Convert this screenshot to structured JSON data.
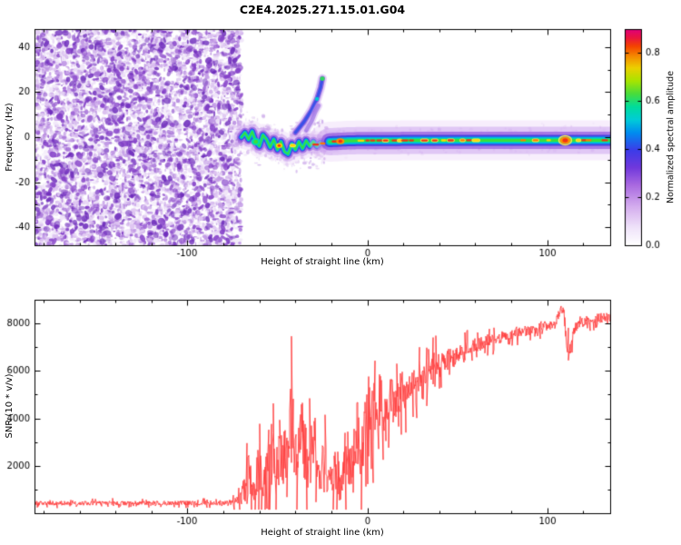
{
  "title": "C2E4.2025.271.15.01.G04",
  "chart_data": [
    {
      "type": "heatmap",
      "title": "C2E4.2025.271.15.01.G04",
      "xlabel": "Height of straight line (km)",
      "ylabel": "Frequency (Hz)",
      "x_range": [
        -185,
        135
      ],
      "y_range": [
        -48,
        48
      ],
      "x_ticks": [
        -100,
        0,
        100
      ],
      "x_minor_step": 20,
      "y_ticks": [
        -40,
        -20,
        0,
        20,
        40
      ],
      "y_minor_step": 10,
      "colorbar": {
        "label": "Normalized spectral amplitude",
        "ticks": [
          0.0,
          0.2,
          0.4,
          0.6,
          0.8
        ],
        "value_range": [
          0,
          0.9
        ],
        "stops": [
          {
            "p": 0.0,
            "c": "#ffffff"
          },
          {
            "p": 0.08,
            "c": "#f0e4fa"
          },
          {
            "p": 0.18,
            "c": "#d4acee"
          },
          {
            "p": 0.28,
            "c": "#a868e0"
          },
          {
            "p": 0.36,
            "c": "#7038dc"
          },
          {
            "p": 0.44,
            "c": "#3c3ce8"
          },
          {
            "p": 0.52,
            "c": "#008cf0"
          },
          {
            "p": 0.58,
            "c": "#00ccd8"
          },
          {
            "p": 0.64,
            "c": "#00dc9c"
          },
          {
            "p": 0.7,
            "c": "#48dc3c"
          },
          {
            "p": 0.76,
            "c": "#a8e400"
          },
          {
            "p": 0.82,
            "c": "#ecd000"
          },
          {
            "p": 0.87,
            "c": "#f49000"
          },
          {
            "p": 0.92,
            "c": "#f44400"
          },
          {
            "p": 0.96,
            "c": "#ea1440"
          },
          {
            "p": 1.0,
            "c": "#e0007c"
          }
        ]
      },
      "noise_region": {
        "x_min": -185,
        "x_max": -70,
        "description": "dense incoherent purple speckle noise filling full frequency range"
      },
      "signal_trace": {
        "description": "narrow wavy spectral line from -70 to -20 km, then flat horizontal band near 0 Hz out to 135 km with green core and red/orange center dashes",
        "points": [
          [
            -70,
            0
          ],
          [
            -68,
            2
          ],
          [
            -66,
            -1
          ],
          [
            -64,
            2.5
          ],
          [
            -62,
            -2
          ],
          [
            -60,
            -4
          ],
          [
            -58,
            1
          ],
          [
            -56,
            -1
          ],
          [
            -54,
            -4.5
          ],
          [
            -52,
            -1
          ],
          [
            -50,
            -5.5
          ],
          [
            -48,
            -2
          ],
          [
            -46,
            -6.5
          ],
          [
            -44,
            -7.5
          ],
          [
            -42,
            -3
          ],
          [
            -40,
            -5.5
          ],
          [
            -38,
            -2
          ],
          [
            -36,
            -5
          ],
          [
            -34,
            -1.5
          ],
          [
            -32,
            -4
          ],
          [
            -30,
            -2
          ],
          [
            -28,
            -4
          ],
          [
            -26,
            -2.5
          ],
          [
            -24,
            -3
          ],
          [
            -22,
            -2
          ],
          [
            -20,
            -2
          ],
          [
            -10,
            -1.6
          ],
          [
            0,
            -1.5
          ],
          [
            50,
            -1.4
          ],
          [
            100,
            -1.4
          ],
          [
            135,
            -1.4
          ]
        ],
        "halfwidth_hz": {
          "wavy": 2.5,
          "flat": 5
        },
        "hotspots_km": [
          -62,
          -49,
          -15,
          110
        ]
      },
      "streaks": [
        {
          "points": [
            [
              -40,
              2
            ],
            [
              -35,
              7
            ],
            [
              -31,
              12
            ],
            [
              -28,
              17
            ],
            [
              -26,
              22
            ],
            [
              -25,
              26
            ]
          ],
          "intensity": "medium"
        },
        {
          "points": [
            [
              -34,
              3
            ],
            [
              -31,
              7
            ],
            [
              -29,
              11
            ],
            [
              -27,
              14
            ]
          ],
          "intensity": "faint"
        }
      ]
    },
    {
      "type": "line",
      "xlabel": "Height of straight line (km)",
      "ylabel": "SNR (10 * v/v)",
      "x_range": [
        -185,
        135
      ],
      "y_range": [
        0,
        9000
      ],
      "x_ticks": [
        -100,
        0,
        100
      ],
      "x_minor_step": 20,
      "y_ticks": [
        2000,
        4000,
        6000,
        8000
      ],
      "y_minor_step": 1000,
      "series": [
        {
          "name": "SNR",
          "color": "#ff3b3b",
          "anchors_x_mean_spread": [
            [
              -185,
              420,
              140
            ],
            [
              -150,
              425,
              140
            ],
            [
              -120,
              430,
              140
            ],
            [
              -95,
              430,
              150
            ],
            [
              -78,
              440,
              160
            ],
            [
              -72,
              500,
              260
            ],
            [
              -69,
              900,
              800
            ],
            [
              -66,
              1600,
              1400
            ],
            [
              -63,
              900,
              800
            ],
            [
              -60,
              2400,
              2100
            ],
            [
              -57,
              1200,
              1000
            ],
            [
              -54,
              2900,
              2500
            ],
            [
              -51,
              1400,
              1200
            ],
            [
              -48,
              3100,
              2700
            ],
            [
              -45,
              2400,
              2100
            ],
            [
              -42,
              3900,
              2900
            ],
            [
              -39,
              2100,
              1800
            ],
            [
              -36,
              3400,
              2600
            ],
            [
              -33,
              1900,
              1600
            ],
            [
              -30,
              2700,
              2300
            ],
            [
              -27,
              1500,
              1300
            ],
            [
              -24,
              2200,
              1800
            ],
            [
              -21,
              1100,
              900
            ],
            [
              -18,
              1700,
              1400
            ],
            [
              -15,
              900,
              700
            ],
            [
              -12,
              2600,
              2100
            ],
            [
              -9,
              1700,
              1400
            ],
            [
              -6,
              3600,
              2600
            ],
            [
              -3,
              2700,
              2100
            ],
            [
              0,
              4400,
              2300
            ],
            [
              3,
              4000,
              2100
            ],
            [
              6,
              4800,
              1900
            ],
            [
              9,
              4300,
              1900
            ],
            [
              12,
              5000,
              1700
            ],
            [
              15,
              4700,
              1600
            ],
            [
              18,
              5200,
              1400
            ],
            [
              21,
              5000,
              1300
            ],
            [
              25,
              5400,
              1150
            ],
            [
              30,
              5700,
              1050
            ],
            [
              35,
              6000,
              950
            ],
            [
              40,
              6250,
              850
            ],
            [
              45,
              6450,
              750
            ],
            [
              50,
              6650,
              650
            ],
            [
              55,
              6850,
              580
            ],
            [
              60,
              7050,
              520
            ],
            [
              65,
              7200,
              470
            ],
            [
              70,
              7320,
              430
            ],
            [
              75,
              7420,
              400
            ],
            [
              80,
              7520,
              380
            ],
            [
              85,
              7620,
              360
            ],
            [
              90,
              7720,
              350
            ],
            [
              95,
              7820,
              340
            ],
            [
              100,
              7900,
              340
            ],
            [
              104,
              8000,
              360
            ],
            [
              107,
              8350,
              450
            ],
            [
              109,
              8750,
              350
            ],
            [
              111,
              7300,
              750
            ],
            [
              113,
              6700,
              600
            ],
            [
              115,
              7650,
              500
            ],
            [
              118,
              8050,
              420
            ],
            [
              122,
              8120,
              360
            ],
            [
              127,
              8200,
              340
            ],
            [
              132,
              8250,
              330
            ],
            [
              135,
              8250,
              330
            ]
          ]
        }
      ]
    }
  ]
}
